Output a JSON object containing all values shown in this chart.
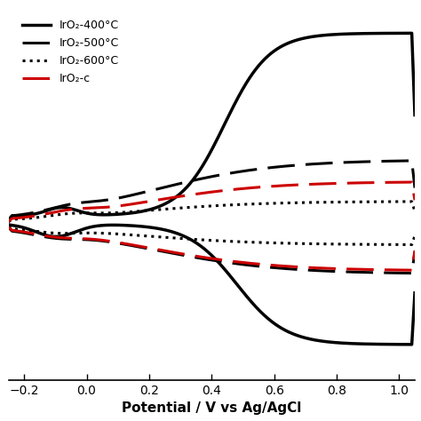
{
  "title": "",
  "xlabel": "Potential / V vs Ag/AgCl",
  "ylabel": "",
  "xlim": [
    -0.25,
    1.05
  ],
  "ylim": [
    -0.75,
    1.05
  ],
  "xticks": [
    -0.2,
    0.0,
    0.2,
    0.4,
    0.6,
    0.8,
    1.0
  ],
  "background_color": "#ffffff",
  "legend_entries": [
    {
      "label": "IrO₂-400°C",
      "color": "#000000",
      "linestyle": "solid",
      "linewidth": 2.5
    },
    {
      "label": "IrO₂-500°C",
      "color": "#000000",
      "linestyle": "dashed",
      "linewidth": 2.2
    },
    {
      "label": "IrO₂-600°C",
      "color": "#000000",
      "linestyle": "dotted",
      "linewidth": 2.2
    },
    {
      "label": "IrO₂-c",
      "color": "#cc0000",
      "linestyle": "dashed",
      "linewidth": 2.2
    }
  ]
}
